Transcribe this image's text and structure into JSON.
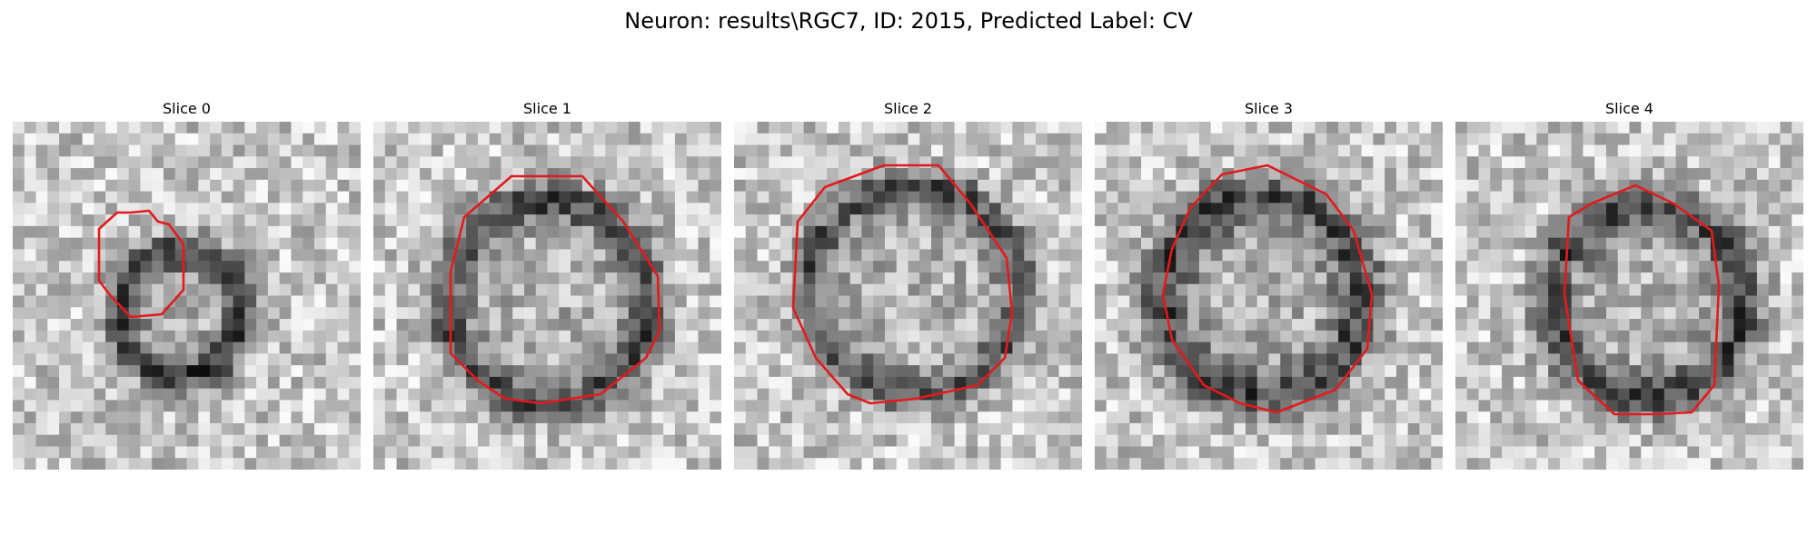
{
  "figure": {
    "title": "Neuron: results\\RGC7, ID: 2015, Predicted Label: CV"
  },
  "panels": [
    {
      "label": "Slice 0"
    },
    {
      "label": "Slice 1"
    },
    {
      "label": "Slice 2"
    },
    {
      "label": "Slice 3"
    },
    {
      "label": "Slice 4"
    }
  ],
  "colors": {
    "contour": "#e31a1c",
    "background": "#ffffff"
  }
}
